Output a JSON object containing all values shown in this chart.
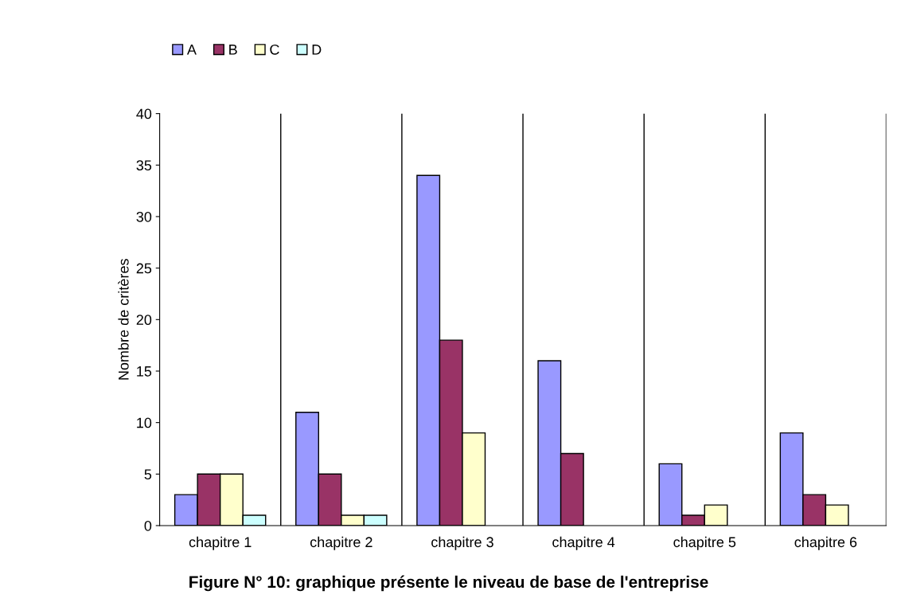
{
  "chart_data": {
    "type": "bar",
    "title": "Figure N° 10: graphique présente le niveau de base de l'entreprise",
    "ylabel": "Nombre de critères",
    "categories": [
      "chapitre 1",
      "chapitre 2",
      "chapitre 3",
      "chapitre 4",
      "chapitre 5",
      "chapitre 6"
    ],
    "series": [
      {
        "name": "A",
        "color": "#9999ff",
        "values": [
          3,
          11,
          34,
          16,
          6,
          9
        ]
      },
      {
        "name": "B",
        "color": "#993366",
        "values": [
          5,
          5,
          18,
          7,
          1,
          3
        ]
      },
      {
        "name": "C",
        "color": "#ffffcc",
        "values": [
          5,
          1,
          9,
          0,
          2,
          2
        ]
      },
      {
        "name": "D",
        "color": "#ccffff",
        "values": [
          1,
          1,
          0,
          0,
          0,
          0
        ]
      }
    ],
    "ylim": [
      0,
      40
    ],
    "yticks": [
      0,
      5,
      10,
      15,
      20,
      25,
      30,
      35,
      40
    ],
    "grid": "x",
    "legend": "top left"
  }
}
